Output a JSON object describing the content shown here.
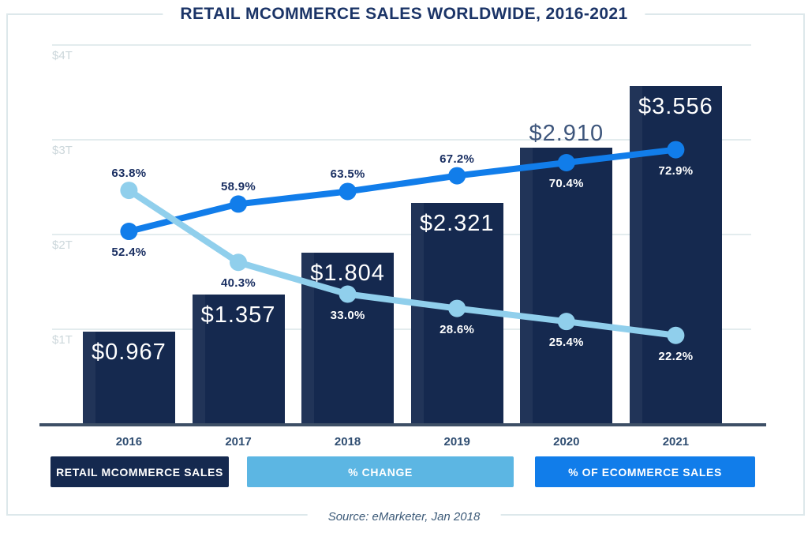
{
  "title": "RETAIL MCOMMERCE SALES WORLDWIDE, 2016-2021",
  "source": "Source: eMarketer, Jan 2018",
  "colors": {
    "bar_navy": "#15294f",
    "ecommerce_blue": "#117dea",
    "change_light_blue": "#90cfec",
    "legend_change_badge": "#5cb6e3",
    "legend_ecommerce_badge": "#117dea",
    "navy_label_text": "#1a2f62",
    "axis_tick_text": "#ccd7db"
  },
  "legend": [
    {
      "label": "RETAIL MCOMMERCE SALES",
      "color": "#15294f"
    },
    {
      "label": "% CHANGE",
      "color": "#5cb6e3"
    },
    {
      "label": "% OF ECOMMERCE SALES",
      "color": "#117dea"
    }
  ],
  "chart_data": {
    "type": "combo",
    "categories": [
      "2016",
      "2017",
      "2018",
      "2019",
      "2020",
      "2021"
    ],
    "y_axis": {
      "ticks": [
        {
          "label": "$4T",
          "value": 4
        },
        {
          "label": "$3T",
          "value": 3
        },
        {
          "label": "$2T",
          "value": 2
        },
        {
          "label": "$1T",
          "value": 1
        }
      ],
      "unit": "USD trillions",
      "ylim": [
        0,
        4.3
      ],
      "grid": "horizontal"
    },
    "legend_position": "bottom",
    "series": [
      {
        "name": "RETAIL MCOMMERCE SALES",
        "type": "bar",
        "unit": "USD trillions",
        "values": [
          0.967,
          1.357,
          1.804,
          2.321,
          2.91,
          3.556
        ],
        "labels": [
          "$0.967",
          "$1.357",
          "$1.804",
          "$2.321",
          "$2.910",
          "$3.556"
        ],
        "label_inside": [
          true,
          true,
          true,
          true,
          false,
          true
        ]
      },
      {
        "name": "% OF ECOMMERCE SALES",
        "type": "line",
        "unit": "percent",
        "values": [
          52.4,
          58.9,
          63.5,
          67.2,
          70.4,
          72.9
        ],
        "labels": [
          "52.4%",
          "58.9%",
          "63.5%",
          "67.2%",
          "70.4%",
          "72.9%"
        ],
        "label_position": [
          "below",
          "above",
          "above",
          "above",
          "below",
          "below"
        ],
        "label_theme": [
          "dark",
          "dark",
          "dark",
          "dark",
          "light",
          "light"
        ],
        "point_dy": [
          0,
          -5,
          0,
          -3,
          -5,
          -10
        ]
      },
      {
        "name": "% CHANGE",
        "type": "line",
        "unit": "percent",
        "values": [
          63.8,
          40.3,
          33.0,
          28.6,
          25.4,
          22.2
        ],
        "labels": [
          "63.8%",
          "40.3%",
          "33.0%",
          "28.6%",
          "25.4%",
          "22.2%"
        ],
        "label_position": [
          "above",
          "below",
          "below",
          "below",
          "below",
          "below"
        ],
        "label_theme": [
          "dark",
          "dark",
          "light",
          "light",
          "light",
          "light"
        ],
        "point_dy": [
          0,
          -16,
          -9,
          -11,
          -9,
          -6
        ]
      }
    ]
  }
}
